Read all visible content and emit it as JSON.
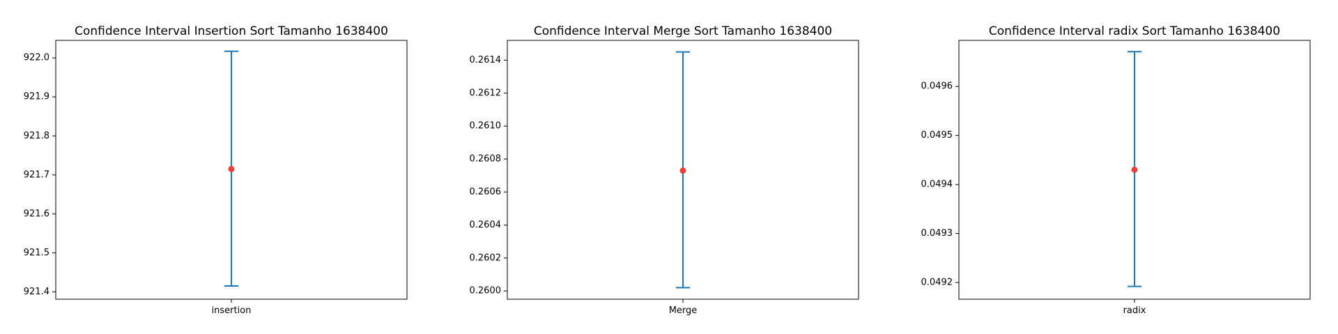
{
  "chart_data": [
    {
      "type": "errorbar",
      "title": "Confidence Interval Insertion Sort Tamanho 1638400",
      "xlabel": "",
      "ylabel": "",
      "categories": [
        "insertion"
      ],
      "series": [
        {
          "mean": 921.715,
          "lower": 921.415,
          "upper": 922.017
        }
      ],
      "ylim": [
        921.381,
        922.045
      ],
      "yticks": [
        921.4,
        921.5,
        921.6,
        921.7,
        921.8,
        921.9,
        922.0
      ],
      "ytick_labels": [
        "921.4",
        "921.5",
        "921.6",
        "921.7",
        "921.8",
        "921.9",
        "922.0"
      ],
      "grid": false
    },
    {
      "type": "errorbar",
      "title": "Confidence Interval Merge Sort Tamanho 1638400",
      "xlabel": "",
      "ylabel": "",
      "categories": [
        "Merge"
      ],
      "series": [
        {
          "mean": 0.26073,
          "lower": 0.26002,
          "upper": 0.26145
        }
      ],
      "ylim": [
        0.25995,
        0.26152
      ],
      "yticks": [
        0.26,
        0.2602,
        0.2604,
        0.2606,
        0.2608,
        0.261,
        0.2612,
        0.2614
      ],
      "ytick_labels": [
        "0.2600",
        "0.2602",
        "0.2604",
        "0.2606",
        "0.2608",
        "0.2610",
        "0.2612",
        "0.2614"
      ],
      "grid": false
    },
    {
      "type": "errorbar",
      "title": "Confidence Interval radix Sort Tamanho 1638400",
      "xlabel": "",
      "ylabel": "",
      "categories": [
        "radix"
      ],
      "series": [
        {
          "mean": 0.04943,
          "lower": 0.049192,
          "upper": 0.049671
        }
      ],
      "ylim": [
        0.049166,
        0.049694
      ],
      "yticks": [
        0.0492,
        0.0493,
        0.0494,
        0.0495,
        0.0496
      ],
      "ytick_labels": [
        "0.0492",
        "0.0493",
        "0.0494",
        "0.0495",
        "0.0496"
      ],
      "grid": false
    }
  ],
  "colors": {
    "errorbar": "#1f77b4",
    "mean_marker": "#e8423b",
    "axes": "#000000",
    "background": "#ffffff"
  }
}
